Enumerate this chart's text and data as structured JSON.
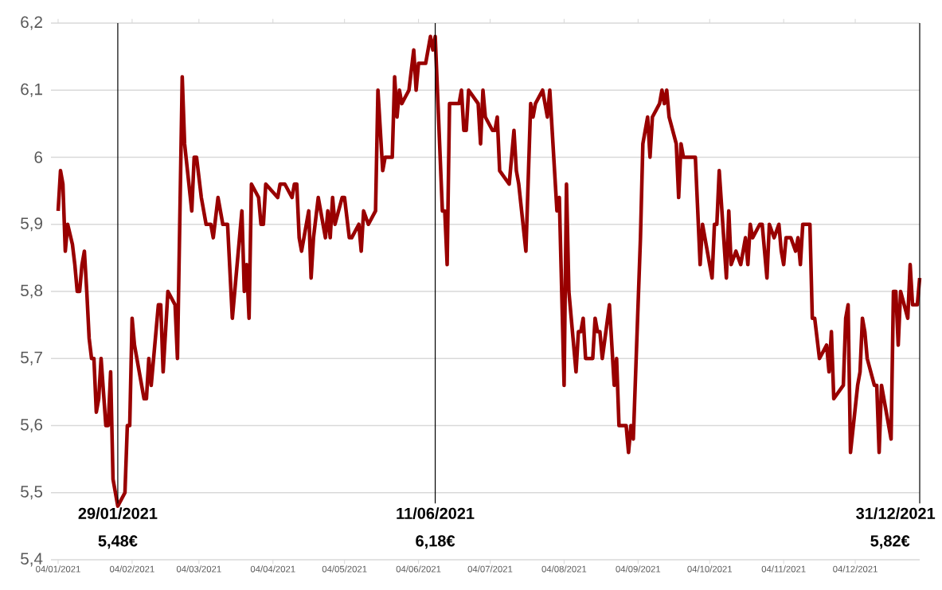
{
  "chart_data": {
    "type": "line",
    "x": [
      "2021-01-04",
      "2021-01-05",
      "2021-01-06",
      "2021-01-07",
      "2021-01-08",
      "2021-01-10",
      "2021-01-11",
      "2021-01-12",
      "2021-01-13",
      "2021-01-14",
      "2021-01-15",
      "2021-01-16",
      "2021-01-17",
      "2021-01-18",
      "2021-01-19",
      "2021-01-20",
      "2021-01-21",
      "2021-01-22",
      "2021-01-23",
      "2021-01-24",
      "2021-01-25",
      "2021-01-26",
      "2021-01-27",
      "2021-01-29",
      "2021-02-01",
      "2021-02-02",
      "2021-02-03",
      "2021-02-04",
      "2021-02-05",
      "2021-02-09",
      "2021-02-10",
      "2021-02-11",
      "2021-02-12",
      "2021-02-15",
      "2021-02-16",
      "2021-02-17",
      "2021-02-19",
      "2021-02-22",
      "2021-02-23",
      "2021-02-25",
      "2021-02-26",
      "2021-03-01",
      "2021-03-02",
      "2021-03-03",
      "2021-03-05",
      "2021-03-07",
      "2021-03-09",
      "2021-03-10",
      "2021-03-12",
      "2021-03-14",
      "2021-03-16",
      "2021-03-18",
      "2021-03-22",
      "2021-03-23",
      "2021-03-24",
      "2021-03-25",
      "2021-03-26",
      "2021-03-29",
      "2021-03-30",
      "2021-03-31",
      "2021-04-01",
      "2021-04-06",
      "2021-04-07",
      "2021-04-09",
      "2021-04-12",
      "2021-04-13",
      "2021-04-14",
      "2021-04-15",
      "2021-04-16",
      "2021-04-19",
      "2021-04-20",
      "2021-04-21",
      "2021-04-23",
      "2021-04-26",
      "2021-04-27",
      "2021-04-28",
      "2021-04-29",
      "2021-04-30",
      "2021-05-03",
      "2021-05-04",
      "2021-05-06",
      "2021-05-07",
      "2021-05-10",
      "2021-05-11",
      "2021-05-12",
      "2021-05-14",
      "2021-05-17",
      "2021-05-18",
      "2021-05-20",
      "2021-05-21",
      "2021-05-24",
      "2021-05-25",
      "2021-05-26",
      "2021-05-27",
      "2021-05-28",
      "2021-05-31",
      "2021-06-02",
      "2021-06-03",
      "2021-06-04",
      "2021-06-07",
      "2021-06-09",
      "2021-06-10",
      "2021-06-11",
      "2021-06-14",
      "2021-06-15",
      "2021-06-16",
      "2021-06-17",
      "2021-06-21",
      "2021-06-22",
      "2021-06-23",
      "2021-06-24",
      "2021-06-25",
      "2021-06-29",
      "2021-06-30",
      "2021-07-01",
      "2021-07-02",
      "2021-07-05",
      "2021-07-06",
      "2021-07-07",
      "2021-07-08",
      "2021-07-12",
      "2021-07-14",
      "2021-07-15",
      "2021-07-16",
      "2021-07-19",
      "2021-07-21",
      "2021-07-22",
      "2021-07-23",
      "2021-07-26",
      "2021-07-28",
      "2021-07-29",
      "2021-08-01",
      "2021-08-02",
      "2021-08-04",
      "2021-08-05",
      "2021-08-06",
      "2021-08-09",
      "2021-08-10",
      "2021-08-11",
      "2021-08-12",
      "2021-08-13",
      "2021-08-16",
      "2021-08-17",
      "2021-08-18",
      "2021-08-19",
      "2021-08-20",
      "2021-08-23",
      "2021-08-25",
      "2021-08-26",
      "2021-08-27",
      "2021-08-30",
      "2021-08-31",
      "2021-09-01",
      "2021-09-02",
      "2021-09-05",
      "2021-09-06",
      "2021-09-08",
      "2021-09-09",
      "2021-09-10",
      "2021-09-13",
      "2021-09-14",
      "2021-09-15",
      "2021-09-16",
      "2021-09-17",
      "2021-09-20",
      "2021-09-21",
      "2021-09-22",
      "2021-09-23",
      "2021-09-28",
      "2021-09-30",
      "2021-10-01",
      "2021-10-05",
      "2021-10-06",
      "2021-10-07",
      "2021-10-08",
      "2021-10-11",
      "2021-10-12",
      "2021-10-13",
      "2021-10-15",
      "2021-10-17",
      "2021-10-19",
      "2021-10-20",
      "2021-10-21",
      "2021-10-22",
      "2021-10-25",
      "2021-10-26",
      "2021-10-28",
      "2021-10-29",
      "2021-10-31",
      "2021-11-02",
      "2021-11-03",
      "2021-11-04",
      "2021-11-05",
      "2021-11-07",
      "2021-11-09",
      "2021-11-10",
      "2021-11-11",
      "2021-11-12",
      "2021-11-15",
      "2021-11-16",
      "2021-11-17",
      "2021-11-19",
      "2021-11-22",
      "2021-11-23",
      "2021-11-24",
      "2021-11-25",
      "2021-11-29",
      "2021-11-30",
      "2021-12-01",
      "2021-12-02",
      "2021-12-05",
      "2021-12-06",
      "2021-12-07",
      "2021-12-08",
      "2021-12-09",
      "2021-12-12",
      "2021-12-13",
      "2021-12-14",
      "2021-12-15",
      "2021-12-19",
      "2021-12-20",
      "2021-12-21",
      "2021-12-22",
      "2021-12-23",
      "2021-12-26",
      "2021-12-27",
      "2021-12-28",
      "2021-12-30",
      "2021-12-31"
    ],
    "series": [
      {
        "color": "#990000",
        "values": [
          5.92,
          5.98,
          5.96,
          5.86,
          5.9,
          5.87,
          5.84,
          5.8,
          5.8,
          5.84,
          5.86,
          5.8,
          5.73,
          5.7,
          5.7,
          5.62,
          5.64,
          5.7,
          5.65,
          5.6,
          5.6,
          5.68,
          5.52,
          5.48,
          5.5,
          5.6,
          5.6,
          5.76,
          5.72,
          5.64,
          5.64,
          5.7,
          5.66,
          5.78,
          5.78,
          5.68,
          5.8,
          5.78,
          5.7,
          6.12,
          6.02,
          5.92,
          6.0,
          6.0,
          5.94,
          5.9,
          5.9,
          5.88,
          5.94,
          5.9,
          5.9,
          5.76,
          5.92,
          5.8,
          5.84,
          5.76,
          5.96,
          5.94,
          5.9,
          5.9,
          5.96,
          5.94,
          5.96,
          5.96,
          5.94,
          5.96,
          5.96,
          5.88,
          5.86,
          5.92,
          5.82,
          5.88,
          5.94,
          5.88,
          5.92,
          5.88,
          5.94,
          5.9,
          5.94,
          5.94,
          5.88,
          5.88,
          5.9,
          5.86,
          5.92,
          5.9,
          5.92,
          6.1,
          5.98,
          6.0,
          6.0,
          6.12,
          6.06,
          6.1,
          6.08,
          6.1,
          6.16,
          6.1,
          6.14,
          6.14,
          6.18,
          6.16,
          6.18,
          5.92,
          5.92,
          5.84,
          6.08,
          6.08,
          6.1,
          6.04,
          6.04,
          6.1,
          6.08,
          6.02,
          6.1,
          6.06,
          6.04,
          6.04,
          6.06,
          5.98,
          5.96,
          6.04,
          5.98,
          5.96,
          5.86,
          6.08,
          6.06,
          6.08,
          6.1,
          6.06,
          6.1,
          5.92,
          5.94,
          5.66,
          5.96,
          5.8,
          5.68,
          5.74,
          5.74,
          5.76,
          5.7,
          5.7,
          5.76,
          5.74,
          5.74,
          5.7,
          5.78,
          5.66,
          5.7,
          5.6,
          5.6,
          5.56,
          5.6,
          5.58,
          5.88,
          6.02,
          6.06,
          6.0,
          6.06,
          6.08,
          6.1,
          6.08,
          6.1,
          6.06,
          6.02,
          5.94,
          6.02,
          6.0,
          6.0,
          5.84,
          5.9,
          5.82,
          5.9,
          5.9,
          5.98,
          5.82,
          5.92,
          5.84,
          5.86,
          5.84,
          5.88,
          5.84,
          5.9,
          5.88,
          5.9,
          5.9,
          5.82,
          5.9,
          5.88,
          5.9,
          5.86,
          5.84,
          5.88,
          5.88,
          5.86,
          5.88,
          5.84,
          5.9,
          5.9,
          5.76,
          5.76,
          5.7,
          5.72,
          5.68,
          5.74,
          5.64,
          5.66,
          5.76,
          5.78,
          5.56,
          5.66,
          5.68,
          5.76,
          5.74,
          5.7,
          5.66,
          5.66,
          5.56,
          5.66,
          5.58,
          5.8,
          5.8,
          5.72,
          5.8,
          5.76,
          5.84,
          5.78,
          5.78,
          5.82
        ]
      }
    ],
    "xlim": [
      "2021-01-01",
      "2021-12-31"
    ],
    "xticks": [
      {
        "value": "2021-01-04",
        "label": "04/01/2021"
      },
      {
        "value": "2021-02-04",
        "label": "04/02/2021"
      },
      {
        "value": "2021-03-04",
        "label": "04/03/2021"
      },
      {
        "value": "2021-04-04",
        "label": "04/04/2021"
      },
      {
        "value": "2021-05-04",
        "label": "04/05/2021"
      },
      {
        "value": "2021-06-04",
        "label": "04/06/2021"
      },
      {
        "value": "2021-07-04",
        "label": "04/07/2021"
      },
      {
        "value": "2021-08-04",
        "label": "04/08/2021"
      },
      {
        "value": "2021-09-04",
        "label": "04/09/2021"
      },
      {
        "value": "2021-10-04",
        "label": "04/10/2021"
      },
      {
        "value": "2021-11-04",
        "label": "04/11/2021"
      },
      {
        "value": "2021-12-04",
        "label": "04/12/2021"
      }
    ],
    "ylim": [
      5.4,
      6.2
    ],
    "yticks": [
      {
        "value": 5.4,
        "label": "5,4"
      },
      {
        "value": 5.5,
        "label": "5,5"
      },
      {
        "value": 5.6,
        "label": "5,6"
      },
      {
        "value": 5.7,
        "label": "5,7"
      },
      {
        "value": 5.8,
        "label": "5,8"
      },
      {
        "value": 5.9,
        "label": "5,9"
      },
      6,
      {
        "value": 6.1,
        "label": "6,1"
      },
      {
        "value": 6.2,
        "label": "6,2"
      }
    ],
    "grid": "y",
    "ref_lines": [
      {
        "axis": "x",
        "value": "2021-01-29",
        "label": "29/01/2021",
        "color": "#000000"
      },
      {
        "axis": "x",
        "value": "2021-06-11",
        "label": "11/06/2021",
        "color": "#000000"
      },
      {
        "axis": "x",
        "value": "2021-12-31",
        "label": "31/12/2021",
        "color": "#000000"
      }
    ],
    "annotations": [
      "5,48€",
      "6,18€",
      "5,82€"
    ]
  }
}
